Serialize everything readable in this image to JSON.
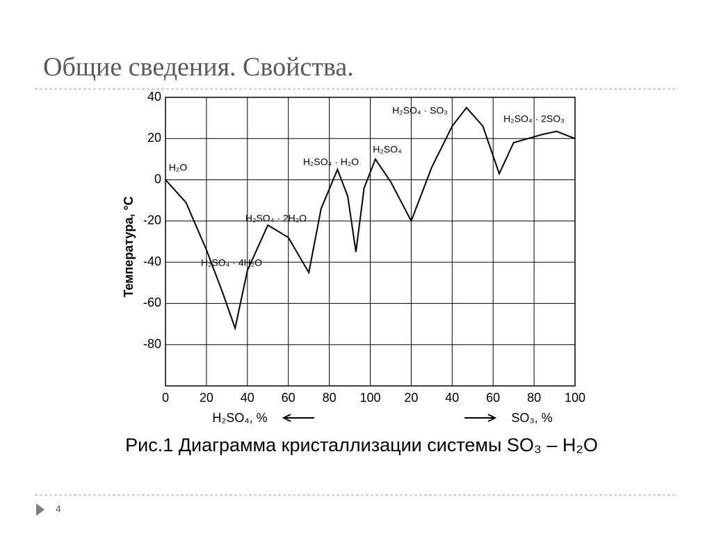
{
  "title": "Общие сведения. Свойства.",
  "chart_data": {
    "type": "line",
    "ylabel": "Температура, °C",
    "xlabels": [
      "H₂SO₄, %",
      "SO₃, %"
    ],
    "xlim": [
      0,
      200
    ],
    "ylim": [
      -100,
      40
    ],
    "xticks": [
      0,
      20,
      40,
      60,
      80,
      100,
      {
        "value": 120,
        "label": "20"
      },
      {
        "value": 140,
        "label": "40"
      },
      {
        "value": 160,
        "label": "60"
      },
      {
        "value": 180,
        "label": "80"
      },
      {
        "value": 200,
        "label": "100"
      }
    ],
    "yticks": [
      40,
      20,
      0,
      -20,
      -40,
      -60,
      -80
    ],
    "grid": true,
    "series": [
      {
        "color": "#000000",
        "x": [
          0,
          10,
          20,
          28,
          34,
          40,
          50,
          60,
          70,
          76,
          84,
          89,
          93,
          97,
          102.5,
          110,
          120,
          130,
          140,
          147,
          155,
          163,
          170,
          184,
          191,
          200
        ],
        "values": [
          0,
          -11,
          -34,
          -55,
          -72,
          -44,
          -22,
          -28,
          -45,
          -14,
          5,
          -8,
          -35,
          -4,
          10,
          -1,
          -20,
          6,
          26,
          35,
          26,
          3,
          18,
          22,
          23.5,
          20
        ]
      }
    ],
    "annotations": [
      "H₂O",
      "H₂SO₄ · 4H₂O",
      "H₂SO₄ · 2H₂O",
      "H₂SO₄ · H₂O",
      "H₂SO₄",
      "H₂SO₄ · SO₃",
      "H₂SO₄ · 2SO₃"
    ]
  },
  "caption": "Рис.1 Диаграмма кристаллизации системы SO₃ – H₂O",
  "page_number": "4"
}
